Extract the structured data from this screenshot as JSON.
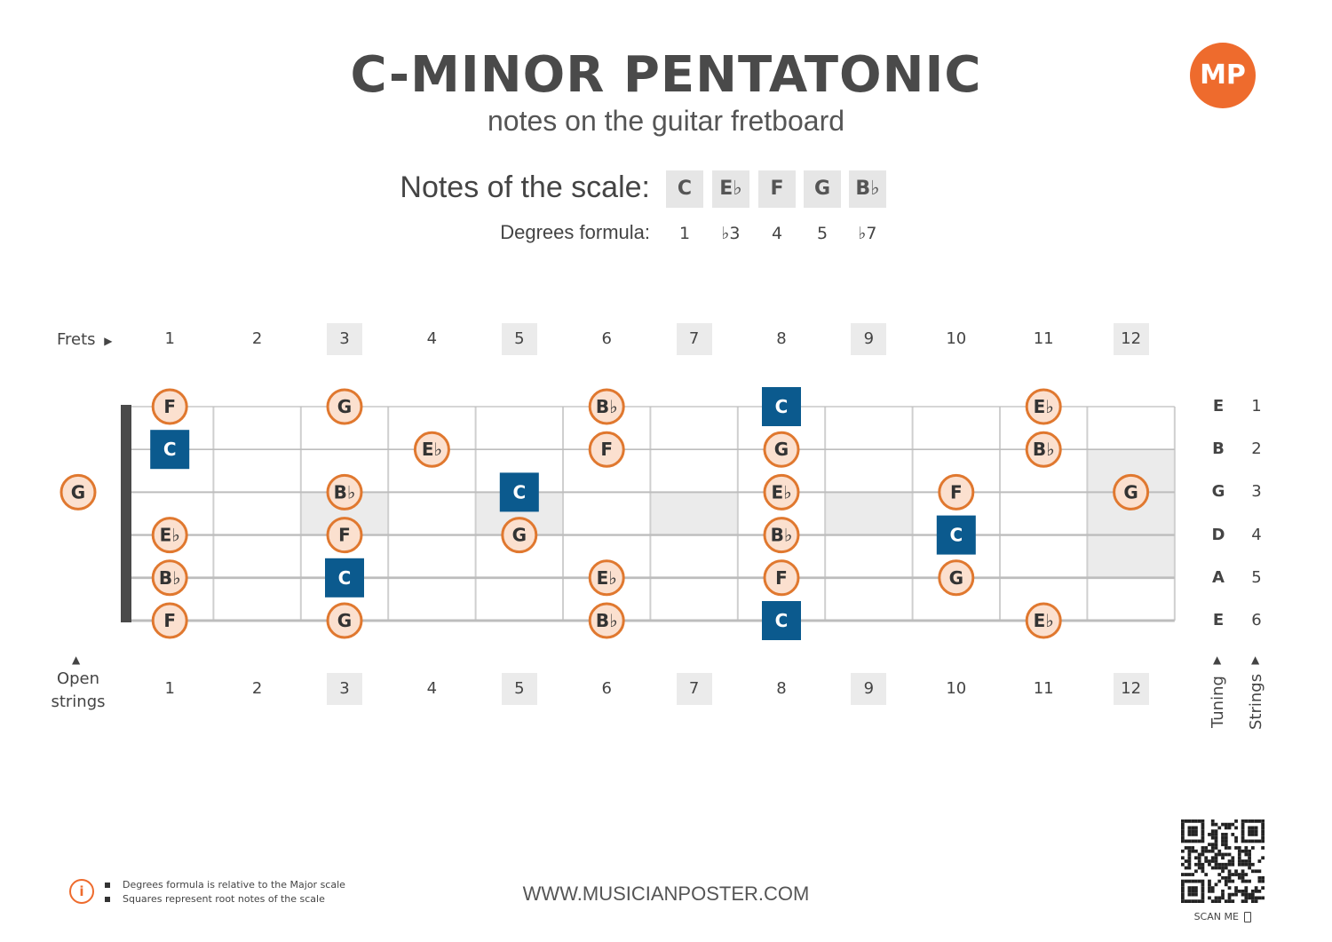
{
  "header": {
    "title": "C-MINOR PENTATONIC",
    "subtitle": "notes on the guitar fretboard",
    "logo_text": "MP"
  },
  "scale": {
    "label": "Notes of the scale:",
    "notes": [
      "C",
      "E♭",
      "F",
      "G",
      "B♭"
    ],
    "degrees_label": "Degrees formula:",
    "degrees": [
      "1",
      "♭3",
      "4",
      "5",
      "♭7"
    ]
  },
  "fretboard": {
    "frets_label": "Frets",
    "fret_numbers": [
      "1",
      "2",
      "3",
      "4",
      "5",
      "6",
      "7",
      "8",
      "9",
      "10",
      "11",
      "12"
    ],
    "marker_frets": [
      3,
      5,
      7,
      9,
      12
    ],
    "open_strings_label_1": "Open",
    "open_strings_label_2": "strings",
    "tuning_label": "Tuning",
    "strings_label": "Strings",
    "tuning": [
      "E",
      "B",
      "G",
      "D",
      "A",
      "E"
    ],
    "string_numbers": [
      "1",
      "2",
      "3",
      "4",
      "5",
      "6"
    ],
    "notes": [
      {
        "string": 1,
        "fret": 1,
        "note": "F",
        "root": false
      },
      {
        "string": 1,
        "fret": 3,
        "note": "G",
        "root": false
      },
      {
        "string": 1,
        "fret": 6,
        "note": "B♭",
        "root": false
      },
      {
        "string": 1,
        "fret": 8,
        "note": "C",
        "root": true
      },
      {
        "string": 1,
        "fret": 11,
        "note": "E♭",
        "root": false
      },
      {
        "string": 2,
        "fret": 1,
        "note": "C",
        "root": true
      },
      {
        "string": 2,
        "fret": 4,
        "note": "E♭",
        "root": false
      },
      {
        "string": 2,
        "fret": 6,
        "note": "F",
        "root": false
      },
      {
        "string": 2,
        "fret": 8,
        "note": "G",
        "root": false
      },
      {
        "string": 2,
        "fret": 11,
        "note": "B♭",
        "root": false
      },
      {
        "string": 3,
        "fret": 0,
        "note": "G",
        "root": false
      },
      {
        "string": 3,
        "fret": 3,
        "note": "B♭",
        "root": false
      },
      {
        "string": 3,
        "fret": 5,
        "note": "C",
        "root": true
      },
      {
        "string": 3,
        "fret": 8,
        "note": "E♭",
        "root": false
      },
      {
        "string": 3,
        "fret": 10,
        "note": "F",
        "root": false
      },
      {
        "string": 3,
        "fret": 12,
        "note": "G",
        "root": false
      },
      {
        "string": 4,
        "fret": 1,
        "note": "E♭",
        "root": false
      },
      {
        "string": 4,
        "fret": 3,
        "note": "F",
        "root": false
      },
      {
        "string": 4,
        "fret": 5,
        "note": "G",
        "root": false
      },
      {
        "string": 4,
        "fret": 8,
        "note": "B♭",
        "root": false
      },
      {
        "string": 4,
        "fret": 10,
        "note": "C",
        "root": true
      },
      {
        "string": 5,
        "fret": 1,
        "note": "B♭",
        "root": false
      },
      {
        "string": 5,
        "fret": 3,
        "note": "C",
        "root": true
      },
      {
        "string": 5,
        "fret": 6,
        "note": "E♭",
        "root": false
      },
      {
        "string": 5,
        "fret": 8,
        "note": "F",
        "root": false
      },
      {
        "string": 5,
        "fret": 10,
        "note": "G",
        "root": false
      },
      {
        "string": 6,
        "fret": 1,
        "note": "F",
        "root": false
      },
      {
        "string": 6,
        "fret": 3,
        "note": "G",
        "root": false
      },
      {
        "string": 6,
        "fret": 6,
        "note": "B♭",
        "root": false
      },
      {
        "string": 6,
        "fret": 8,
        "note": "C",
        "root": true
      },
      {
        "string": 6,
        "fret": 11,
        "note": "E♭",
        "root": false
      }
    ]
  },
  "colors": {
    "root_fill": "#0b5a8e",
    "note_fill": "#fbe0cf",
    "note_stroke": "#e0782f",
    "marker_fill": "#ebebeb",
    "accent": "#ee6b2d"
  },
  "footer": {
    "notes": [
      "Degrees formula is relative to the Major scale",
      "Squares represent root notes of the scale"
    ],
    "url": "WWW.MUSICIANPOSTER.COM",
    "scan_label": "SCAN ME"
  }
}
